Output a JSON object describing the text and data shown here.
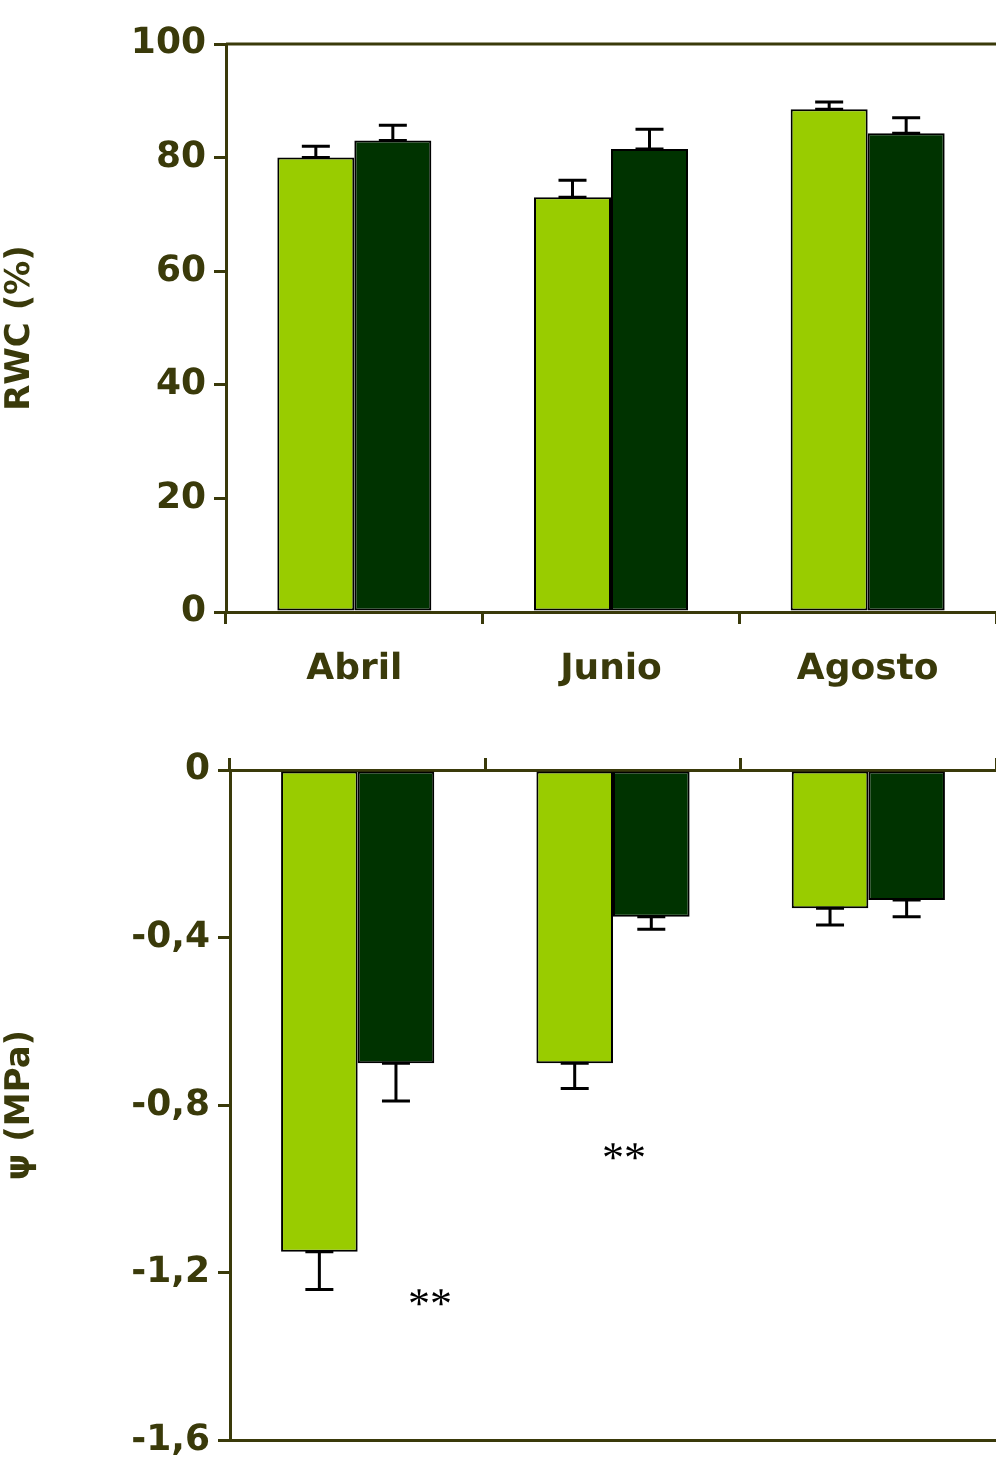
{
  "chart_data": [
    {
      "type": "bar",
      "ylabel": "RWC (%)",
      "categories": [
        "Abril",
        "Junio",
        "Agosto"
      ],
      "series": [
        {
          "color": "#99cc00",
          "values": [
            80,
            73,
            88.5
          ],
          "errors": [
            [
              80,
              82
            ],
            [
              73,
              76
            ],
            [
              88.5,
              89.8
            ]
          ]
        },
        {
          "color": "#003300",
          "values": [
            83,
            81.5,
            84.3
          ],
          "errors": [
            [
              83,
              85.7
            ],
            [
              81.5,
              85
            ],
            [
              84.3,
              87
            ]
          ]
        }
      ],
      "ylim": [
        0,
        100
      ],
      "yticks": [
        0,
        20,
        40,
        60,
        80,
        100
      ],
      "grid": false,
      "legend": false
    },
    {
      "type": "bar",
      "ylabel": "ψ (MPa)",
      "categories": [
        null,
        null,
        null
      ],
      "series": [
        {
          "color": "#99cc00",
          "values": [
            -1.15,
            -0.7,
            -0.33
          ],
          "errors": [
            [
              -1.24,
              -1.15
            ],
            [
              -0.76,
              -0.7
            ],
            [
              -0.37,
              -0.33
            ]
          ]
        },
        {
          "color": "#003300",
          "values": [
            -0.7,
            -0.35,
            -0.31
          ],
          "errors": [
            [
              -0.79,
              -0.7
            ],
            [
              -0.38,
              -0.35
            ],
            [
              -0.35,
              -0.31
            ]
          ]
        }
      ],
      "ylim": [
        -1.6,
        0
      ],
      "yticks": [
        {
          "value": -1.6,
          "label": "-1,6"
        },
        {
          "value": -1.2,
          "label": "-1,2"
        },
        {
          "value": -0.8,
          "label": "-0,8"
        },
        {
          "value": -0.4,
          "label": "-0,4"
        },
        0
      ],
      "grid": false,
      "legend": false,
      "annotations": [
        "**",
        "**"
      ]
    }
  ]
}
